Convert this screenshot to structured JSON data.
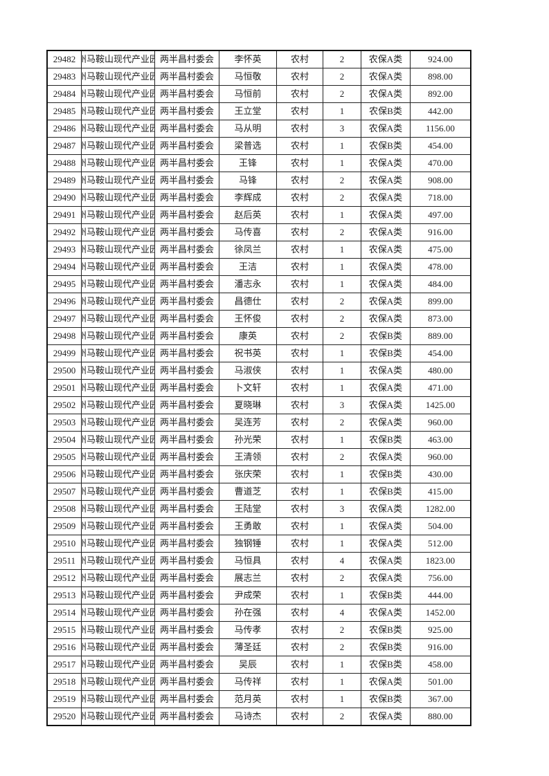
{
  "org": "州马鞍山现代产业园",
  "village": "两半昌村委会",
  "area": "农村",
  "rows": [
    [
      "29482",
      "李怀英",
      "2",
      "农保A类",
      "924.00"
    ],
    [
      "29483",
      "马恒敬",
      "2",
      "农保A类",
      "898.00"
    ],
    [
      "29484",
      "马恒前",
      "2",
      "农保A类",
      "892.00"
    ],
    [
      "29485",
      "王立堂",
      "1",
      "农保B类",
      "442.00"
    ],
    [
      "29486",
      "马从明",
      "3",
      "农保A类",
      "1156.00"
    ],
    [
      "29487",
      "梁普选",
      "1",
      "农保B类",
      "454.00"
    ],
    [
      "29488",
      "王锋",
      "1",
      "农保A类",
      "470.00"
    ],
    [
      "29489",
      "马锋",
      "2",
      "农保A类",
      "908.00"
    ],
    [
      "29490",
      "李辉成",
      "2",
      "农保A类",
      "718.00"
    ],
    [
      "29491",
      "赵后英",
      "1",
      "农保A类",
      "497.00"
    ],
    [
      "29492",
      "马传喜",
      "2",
      "农保A类",
      "916.00"
    ],
    [
      "29493",
      "徐凤兰",
      "1",
      "农保A类",
      "475.00"
    ],
    [
      "29494",
      "王洁",
      "1",
      "农保A类",
      "478.00"
    ],
    [
      "29495",
      "潘志永",
      "1",
      "农保A类",
      "484.00"
    ],
    [
      "29496",
      "昌德仕",
      "2",
      "农保A类",
      "899.00"
    ],
    [
      "29497",
      "王怀俊",
      "2",
      "农保A类",
      "873.00"
    ],
    [
      "29498",
      "康英",
      "2",
      "农保B类",
      "889.00"
    ],
    [
      "29499",
      "祝书英",
      "1",
      "农保B类",
      "454.00"
    ],
    [
      "29500",
      "马淑侠",
      "1",
      "农保A类",
      "480.00"
    ],
    [
      "29501",
      "卜文轩",
      "1",
      "农保A类",
      "471.00"
    ],
    [
      "29502",
      "夏晓琳",
      "3",
      "农保A类",
      "1425.00"
    ],
    [
      "29503",
      "吴连芳",
      "2",
      "农保A类",
      "960.00"
    ],
    [
      "29504",
      "孙光荣",
      "1",
      "农保B类",
      "463.00"
    ],
    [
      "29505",
      "王清领",
      "2",
      "农保A类",
      "960.00"
    ],
    [
      "29506",
      "张庆荣",
      "1",
      "农保B类",
      "430.00"
    ],
    [
      "29507",
      "曹道芝",
      "1",
      "农保B类",
      "415.00"
    ],
    [
      "29508",
      "王陆堂",
      "3",
      "农保A类",
      "1282.00"
    ],
    [
      "29509",
      "王勇敢",
      "1",
      "农保A类",
      "504.00"
    ],
    [
      "29510",
      "独钢锤",
      "1",
      "农保A类",
      "512.00"
    ],
    [
      "29511",
      "马恒具",
      "4",
      "农保A类",
      "1823.00"
    ],
    [
      "29512",
      "展志兰",
      "2",
      "农保A类",
      "756.00"
    ],
    [
      "29513",
      "尹成荣",
      "1",
      "农保B类",
      "444.00"
    ],
    [
      "29514",
      "孙在强",
      "4",
      "农保A类",
      "1452.00"
    ],
    [
      "29515",
      "马传孝",
      "2",
      "农保B类",
      "925.00"
    ],
    [
      "29516",
      "薄圣廷",
      "2",
      "农保B类",
      "916.00"
    ],
    [
      "29517",
      "吴辰",
      "1",
      "农保B类",
      "458.00"
    ],
    [
      "29518",
      "马传祥",
      "1",
      "农保A类",
      "501.00"
    ],
    [
      "29519",
      "范月英",
      "1",
      "农保B类",
      "367.00"
    ],
    [
      "29520",
      "马诗杰",
      "2",
      "农保A类",
      "880.00"
    ]
  ]
}
